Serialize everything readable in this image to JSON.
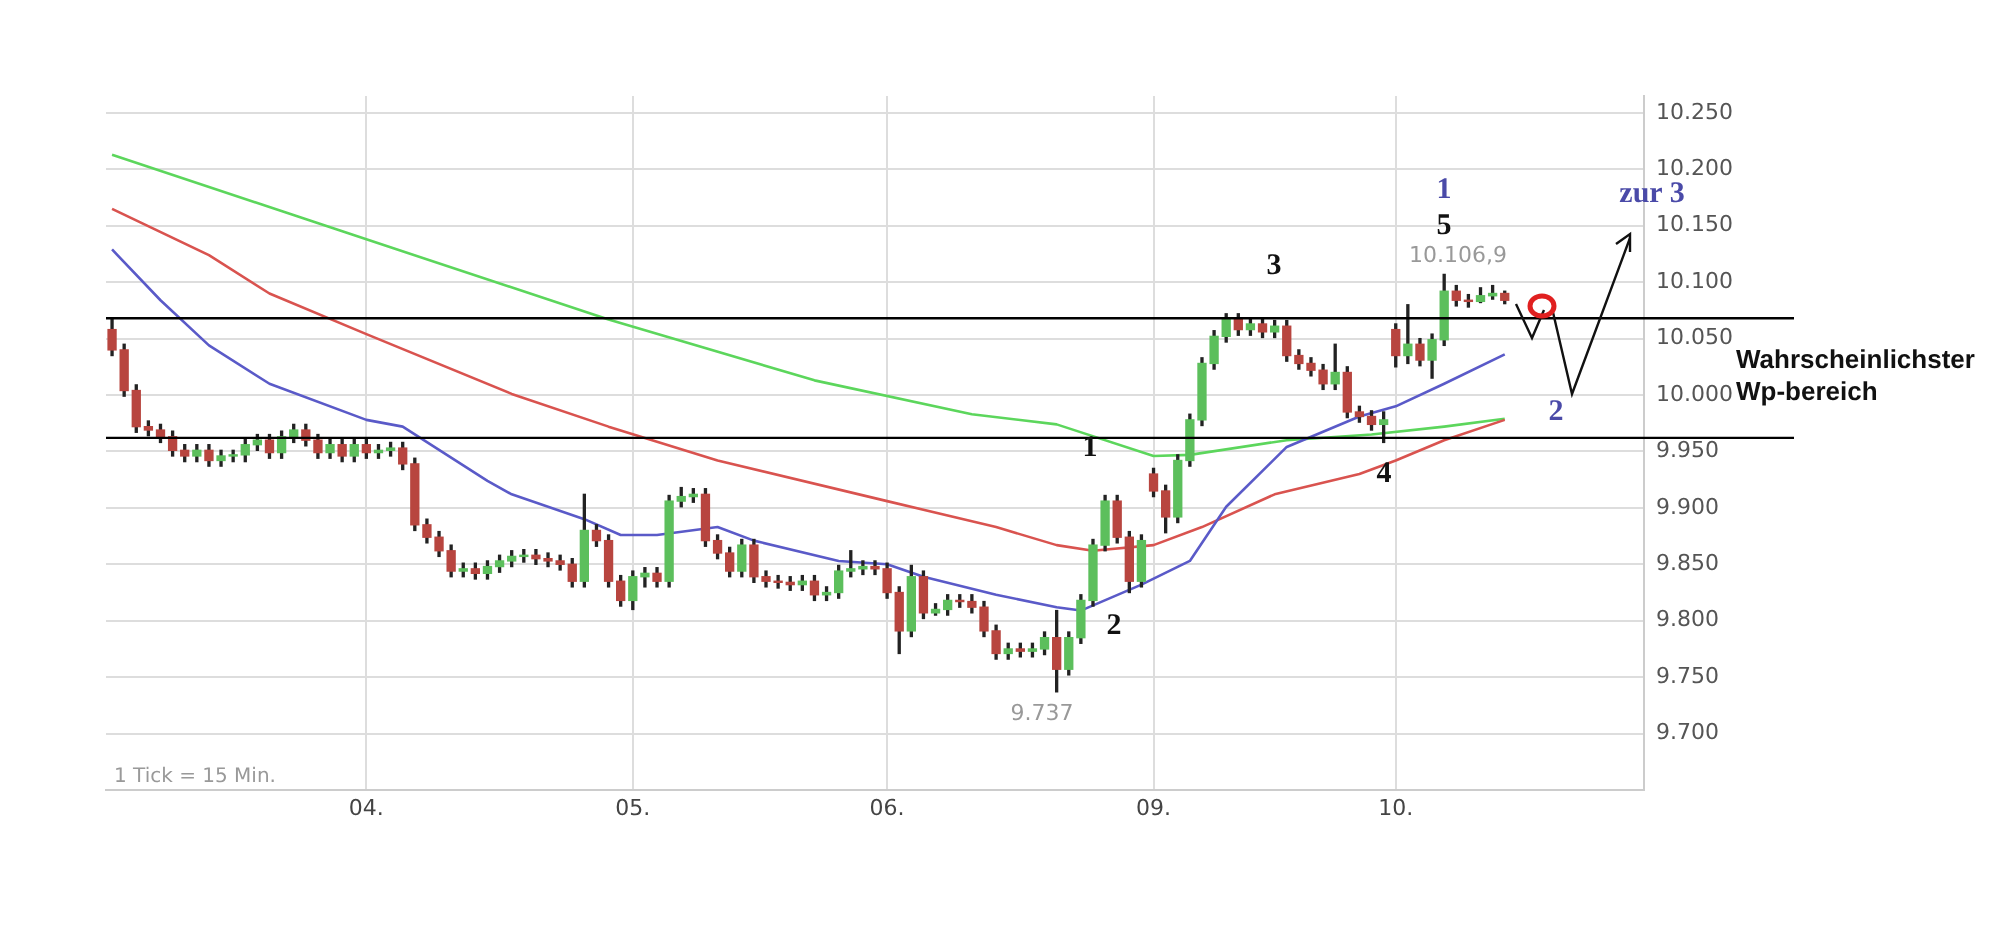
{
  "chart_data": {
    "type": "candlestick",
    "categories": [
      null,
      null,
      null,
      null,
      null,
      null,
      null,
      null,
      null,
      null,
      null,
      null,
      null,
      null,
      null,
      null,
      null,
      null,
      null,
      null,
      null,
      "04.",
      null,
      null,
      null,
      null,
      null,
      null,
      null,
      null,
      null,
      null,
      null,
      null,
      null,
      null,
      null,
      null,
      null,
      null,
      null,
      null,
      null,
      "05.",
      null,
      null,
      null,
      null,
      null,
      null,
      null,
      null,
      null,
      null,
      null,
      null,
      null,
      null,
      null,
      null,
      null,
      null,
      null,
      null,
      "06.",
      null,
      null,
      null,
      null,
      null,
      null,
      null,
      null,
      null,
      null,
      null,
      null,
      null,
      null,
      null,
      null,
      null,
      null,
      null,
      null,
      null,
      "09.",
      null,
      null,
      null,
      null,
      null,
      null,
      null,
      null,
      null,
      null,
      null,
      null,
      null,
      null,
      null,
      null,
      null,
      null,
      null,
      "10.",
      null,
      null,
      null,
      null,
      null,
      null,
      null,
      null,
      null,
      null,
      null,
      null,
      null,
      null,
      null,
      null,
      null,
      null,
      null,
      null
    ],
    "ohlc": [
      [
        10058,
        10067,
        10035,
        10040
      ],
      [
        10040,
        10045,
        9999,
        10004
      ],
      [
        10004,
        10009,
        9967,
        9972
      ],
      [
        9972,
        9977,
        9964,
        9969
      ],
      [
        9969,
        9974,
        9958,
        9963
      ],
      [
        9963,
        9968,
        9946,
        9951
      ],
      [
        9951,
        9956,
        9941,
        9946
      ],
      [
        9946,
        9956,
        9941,
        9951
      ],
      [
        9951,
        9956,
        9937,
        9942
      ],
      [
        9942,
        9951,
        9937,
        9946
      ],
      [
        9946,
        9951,
        9941,
        9947
      ],
      [
        9947,
        9961,
        9941,
        9956
      ],
      [
        9956,
        9965,
        9951,
        9960
      ],
      [
        9960,
        9965,
        9944,
        9949
      ],
      [
        9949,
        9968,
        9944,
        9963
      ],
      [
        9963,
        9974,
        9958,
        9969
      ],
      [
        9969,
        9974,
        9955,
        9960
      ],
      [
        9960,
        9965,
        9944,
        9949
      ],
      [
        9949,
        9961,
        9944,
        9956
      ],
      [
        9956,
        9961,
        9941,
        9946
      ],
      [
        9946,
        9961,
        9941,
        9956
      ],
      [
        9956,
        9961,
        9944,
        9949
      ],
      [
        9949,
        9956,
        9944,
        9951
      ],
      [
        9951,
        9958,
        9946,
        9953
      ],
      [
        9953,
        9958,
        9934,
        9939
      ],
      [
        9939,
        9944,
        9880,
        9885
      ],
      [
        9885,
        9890,
        9869,
        9874
      ],
      [
        9874,
        9879,
        9857,
        9862
      ],
      [
        9862,
        9867,
        9839,
        9844
      ],
      [
        9844,
        9851,
        9839,
        9846
      ],
      [
        9846,
        9851,
        9837,
        9842
      ],
      [
        9842,
        9853,
        9837,
        9848
      ],
      [
        9848,
        9858,
        9843,
        9853
      ],
      [
        9853,
        9862,
        9848,
        9857
      ],
      [
        9857,
        9863,
        9852,
        9858
      ],
      [
        9858,
        9863,
        9850,
        9855
      ],
      [
        9855,
        9860,
        9848,
        9853
      ],
      [
        9853,
        9858,
        9845,
        9850
      ],
      [
        9850,
        9855,
        9830,
        9835
      ],
      [
        9835,
        9912,
        9830,
        9880
      ],
      [
        9880,
        9885,
        9866,
        9871
      ],
      [
        9871,
        9876,
        9830,
        9835
      ],
      [
        9835,
        9840,
        9813,
        9818
      ],
      [
        9818,
        9844,
        9810,
        9839
      ],
      [
        9839,
        9847,
        9830,
        9842
      ],
      [
        9842,
        9847,
        9830,
        9835
      ],
      [
        9835,
        9911,
        9830,
        9906
      ],
      [
        9906,
        9918,
        9901,
        9910
      ],
      [
        9910,
        9917,
        9905,
        9912
      ],
      [
        9912,
        9917,
        9866,
        9871
      ],
      [
        9871,
        9876,
        9855,
        9860
      ],
      [
        9860,
        9865,
        9839,
        9844
      ],
      [
        9844,
        9872,
        9839,
        9867
      ],
      [
        9867,
        9872,
        9834,
        9839
      ],
      [
        9839,
        9844,
        9830,
        9835
      ],
      [
        9835,
        9840,
        9829,
        9834
      ],
      [
        9834,
        9839,
        9827,
        9832
      ],
      [
        9832,
        9840,
        9827,
        9835
      ],
      [
        9835,
        9840,
        9818,
        9823
      ],
      [
        9823,
        9830,
        9818,
        9825
      ],
      [
        9825,
        9849,
        9820,
        9844
      ],
      [
        9844,
        9862,
        9839,
        9846
      ],
      [
        9846,
        9853,
        9841,
        9848
      ],
      [
        9848,
        9853,
        9841,
        9846
      ],
      [
        9846,
        9851,
        9820,
        9825
      ],
      [
        9825,
        9830,
        9771,
        9791
      ],
      [
        9791,
        9849,
        9786,
        9839
      ],
      [
        9839,
        9844,
        9802,
        9807
      ],
      [
        9807,
        9815,
        9805,
        9810
      ],
      [
        9810,
        9823,
        9805,
        9818
      ],
      [
        9818,
        9823,
        9812,
        9817
      ],
      [
        9817,
        9823,
        9807,
        9812
      ],
      [
        9812,
        9817,
        9786,
        9791
      ],
      [
        9791,
        9796,
        9766,
        9771
      ],
      [
        9771,
        9780,
        9766,
        9775
      ],
      [
        9775,
        9780,
        9768,
        9773
      ],
      [
        9773,
        9780,
        9768,
        9775
      ],
      [
        9775,
        9790,
        9770,
        9785
      ],
      [
        9785,
        9809,
        9737,
        9757
      ],
      [
        9757,
        9790,
        9752,
        9785
      ],
      [
        9785,
        9823,
        9780,
        9818
      ],
      [
        9818,
        9872,
        9813,
        9867
      ],
      [
        9867,
        9911,
        9862,
        9906
      ],
      [
        9906,
        9911,
        9869,
        9874
      ],
      [
        9874,
        9879,
        9825,
        9835
      ],
      [
        9835,
        9876,
        9830,
        9871
      ],
      [
        9930,
        9935,
        9910,
        9915
      ],
      [
        9915,
        9920,
        9878,
        9892
      ],
      [
        9892,
        9947,
        9887,
        9942
      ],
      [
        9942,
        9983,
        9937,
        9978
      ],
      [
        9978,
        10033,
        9973,
        10028
      ],
      [
        10028,
        10057,
        10023,
        10052
      ],
      [
        10052,
        10072,
        10047,
        10067
      ],
      [
        10067,
        10072,
        10053,
        10058
      ],
      [
        10058,
        10068,
        10053,
        10063
      ],
      [
        10063,
        10068,
        10051,
        10056
      ],
      [
        10056,
        10066,
        10051,
        10061
      ],
      [
        10061,
        10066,
        10030,
        10035
      ],
      [
        10035,
        10040,
        10023,
        10028
      ],
      [
        10028,
        10033,
        10017,
        10022
      ],
      [
        10022,
        10027,
        10005,
        10010
      ],
      [
        10010,
        10045,
        10005,
        10020
      ],
      [
        10020,
        10025,
        9980,
        9985
      ],
      [
        9985,
        9990,
        9976,
        9981
      ],
      [
        9981,
        9986,
        9969,
        9974
      ],
      [
        9974,
        9985,
        9958,
        9978
      ],
      [
        10058,
        10063,
        10025,
        10035
      ],
      [
        10035,
        10080,
        10028,
        10045
      ],
      [
        10045,
        10050,
        10026,
        10031
      ],
      [
        10031,
        10054,
        10015,
        10049
      ],
      [
        10049,
        10106.9,
        10044,
        10092
      ],
      [
        10092,
        10097,
        10079,
        10084
      ],
      [
        10084,
        10089,
        10078,
        10083
      ],
      [
        10083,
        10095,
        10082,
        10088
      ],
      [
        10088,
        10097,
        10085,
        10090
      ],
      [
        10090,
        10092,
        10081,
        10084
      ],
      null,
      null,
      null,
      null,
      null,
      null,
      null,
      null,
      null,
      null,
      null
    ],
    "colors": [
      "#b8453f",
      "#b8453f",
      "#b8453f",
      "#b8453f",
      "#b8453f",
      "#b8453f",
      "#b8453f",
      "#5cbf5c",
      "#b8453f",
      "#5cbf5c",
      "#5cbf5c",
      "#5cbf5c",
      "#5cbf5c",
      "#b8453f",
      "#5cbf5c",
      "#5cbf5c",
      "#b8453f",
      "#b8453f",
      "#5cbf5c",
      "#b8453f",
      "#5cbf5c",
      "#b8453f",
      "#5cbf5c",
      "#5cbf5c",
      "#b8453f",
      "#b8453f",
      "#b8453f",
      "#b8453f",
      "#b8453f",
      "#5cbf5c",
      "#b8453f",
      "#5cbf5c",
      "#5cbf5c",
      "#5cbf5c",
      "#5cbf5c",
      "#b8453f",
      "#b8453f",
      "#b8453f",
      "#b8453f",
      "#5cbf5c",
      "#b8453f",
      "#b8453f",
      "#b8453f",
      "#5cbf5c",
      "#5cbf5c",
      "#b8453f",
      "#5cbf5c",
      "#5cbf5c",
      "#5cbf5c",
      "#b8453f",
      "#b8453f",
      "#b8453f",
      "#5cbf5c",
      "#b8453f",
      "#b8453f",
      "#b8453f",
      "#b8453f",
      "#5cbf5c",
      "#b8453f",
      "#5cbf5c",
      "#5cbf5c",
      "#5cbf5c",
      "#5cbf5c",
      "#b8453f",
      "#b8453f",
      "#b8453f",
      "#5cbf5c",
      "#b8453f",
      "#5cbf5c",
      "#5cbf5c",
      "#b8453f",
      "#b8453f",
      "#b8453f",
      "#b8453f",
      "#5cbf5c",
      "#b8453f",
      "#5cbf5c",
      "#5cbf5c",
      "#b8453f",
      "#5cbf5c",
      "#5cbf5c",
      "#5cbf5c",
      "#5cbf5c",
      "#b8453f",
      "#b8453f",
      "#5cbf5c",
      "#b8453f",
      "#b8453f",
      "#5cbf5c",
      "#5cbf5c",
      "#5cbf5c",
      "#5cbf5c",
      "#5cbf5c",
      "#b8453f",
      "#5cbf5c",
      "#b8453f",
      "#5cbf5c",
      "#b8453f",
      "#b8453f",
      "#b8453f",
      "#b8453f",
      "#5cbf5c",
      "#b8453f",
      "#b8453f",
      "#b8453f",
      "#5cbf5c",
      "#b8453f",
      "#5cbf5c",
      "#b8453f",
      "#5cbf5c",
      "#5cbf5c",
      "#b8453f",
      "#b8453f",
      "#5cbf5c",
      "#5cbf5c",
      "#b8453f",
      null,
      null,
      null,
      null,
      null,
      null,
      null,
      null,
      null,
      null,
      null
    ],
    "series": [
      {
        "type": "line",
        "color": "#5a5ac8",
        "values": [
          10129,
          null,
          null,
          null,
          10084,
          null,
          null,
          null,
          10044,
          null,
          null,
          null,
          null,
          10010,
          null,
          null,
          null,
          null,
          null,
          null,
          null,
          9978,
          null,
          null,
          9972,
          null,
          null,
          null,
          null,
          null,
          null,
          9924,
          null,
          9912,
          null,
          null,
          null,
          null,
          null,
          9890,
          null,
          null,
          9876,
          null,
          null,
          9876,
          null,
          null,
          null,
          null,
          9883,
          null,
          null,
          9871,
          null,
          null,
          null,
          null,
          null,
          null,
          9853,
          null,
          null,
          null,
          9850,
          null,
          null,
          9839,
          null,
          null,
          null,
          null,
          null,
          9823,
          null,
          null,
          null,
          null,
          9812,
          null,
          9809,
          null,
          null,
          null,
          null,
          9832,
          null,
          null,
          null,
          9853,
          null,
          null,
          9901,
          null,
          null,
          null,
          null,
          9954,
          null,
          null,
          null,
          null,
          null,
          9981,
          null,
          null,
          9990,
          null,
          null,
          null,
          10010,
          null,
          null,
          null,
          null,
          10036,
          null,
          null,
          null,
          null,
          null,
          null,
          null,
          null,
          null,
          null,
          null
        ]
      },
      {
        "type": "line",
        "color": "#d9534f",
        "values": [
          10165,
          null,
          null,
          null,
          null,
          null,
          null,
          null,
          10124,
          null,
          null,
          null,
          null,
          10090,
          null,
          null,
          null,
          null,
          null,
          null,
          null,
          10054,
          null,
          null,
          null,
          null,
          null,
          null,
          null,
          null,
          null,
          null,
          null,
          10001,
          null,
          null,
          null,
          null,
          null,
          null,
          null,
          9972,
          null,
          null,
          null,
          null,
          null,
          null,
          null,
          null,
          9942,
          null,
          null,
          null,
          null,
          null,
          null,
          null,
          null,
          null,
          null,
          null,
          null,
          null,
          9906,
          null,
          null,
          null,
          null,
          null,
          null,
          null,
          null,
          9883,
          null,
          null,
          null,
          null,
          9867,
          null,
          null,
          9862,
          null,
          null,
          null,
          null,
          9867,
          null,
          null,
          null,
          9883,
          null,
          null,
          null,
          null,
          null,
          9912,
          null,
          null,
          null,
          null,
          null,
          null,
          9930,
          null,
          null,
          9942,
          null,
          null,
          null,
          9960,
          null,
          null,
          null,
          null,
          9978,
          null,
          null,
          null,
          null,
          null,
          null,
          null,
          null,
          null,
          null,
          null
        ]
      },
      {
        "type": "line",
        "color": "#5cd65c",
        "values": [
          10213,
          null,
          null,
          null,
          null,
          null,
          null,
          null,
          null,
          null,
          null,
          null,
          null,
          null,
          null,
          null,
          null,
          null,
          null,
          null,
          null,
          10138,
          null,
          null,
          null,
          null,
          null,
          null,
          null,
          null,
          null,
          null,
          null,
          null,
          null,
          null,
          null,
          null,
          null,
          null,
          null,
          10067,
          null,
          null,
          null,
          null,
          null,
          null,
          null,
          null,
          null,
          null,
          null,
          null,
          null,
          null,
          null,
          null,
          10013,
          null,
          null,
          null,
          null,
          null,
          null,
          null,
          null,
          null,
          null,
          null,
          null,
          9983,
          null,
          null,
          null,
          null,
          null,
          null,
          9974,
          null,
          null,
          null,
          null,
          null,
          null,
          null,
          9946,
          null,
          null,
          9947,
          null,
          null,
          null,
          null,
          null,
          null,
          null,
          9960,
          null,
          null,
          null,
          null,
          null,
          null,
          9965,
          null,
          null,
          null,
          null,
          null,
          9972,
          null,
          null,
          null,
          null,
          9979,
          null,
          null,
          null,
          null,
          null,
          null,
          null,
          null,
          null,
          null,
          null
        ]
      }
    ],
    "ylim": [
      9650,
      10265
    ],
    "yticks": [
      {
        "value": 9700,
        "label": "9.700"
      },
      {
        "value": 9750,
        "label": "9.750"
      },
      {
        "value": 9800,
        "label": "9.800"
      },
      {
        "value": 9850,
        "label": "9.850"
      },
      {
        "value": 9900,
        "label": "9.900"
      },
      {
        "value": 9950,
        "label": "9.950"
      },
      {
        "value": 10000,
        "label": "10.000"
      },
      {
        "value": 10050,
        "label": "10.050"
      },
      {
        "value": 10100,
        "label": "10.100"
      },
      {
        "value": 10150,
        "label": "10.150"
      },
      {
        "value": 10200,
        "label": "10.200"
      },
      {
        "value": 10250,
        "label": "10.250"
      }
    ],
    "grid": true,
    "marker": "none",
    "ref_lines": [
      {
        "axis": "y",
        "value": 10068,
        "color": "#000000"
      },
      {
        "axis": "y",
        "value": 9962,
        "color": "#000000"
      }
    ],
    "annotations": [
      "10.106,9",
      "9.737",
      "1",
      "2",
      "3",
      "4",
      "5",
      "1 Tick = 15 Min.",
      "1",
      "zur 3",
      "2",
      "Wahrscheinlichster Wp-bereich"
    ]
  }
}
